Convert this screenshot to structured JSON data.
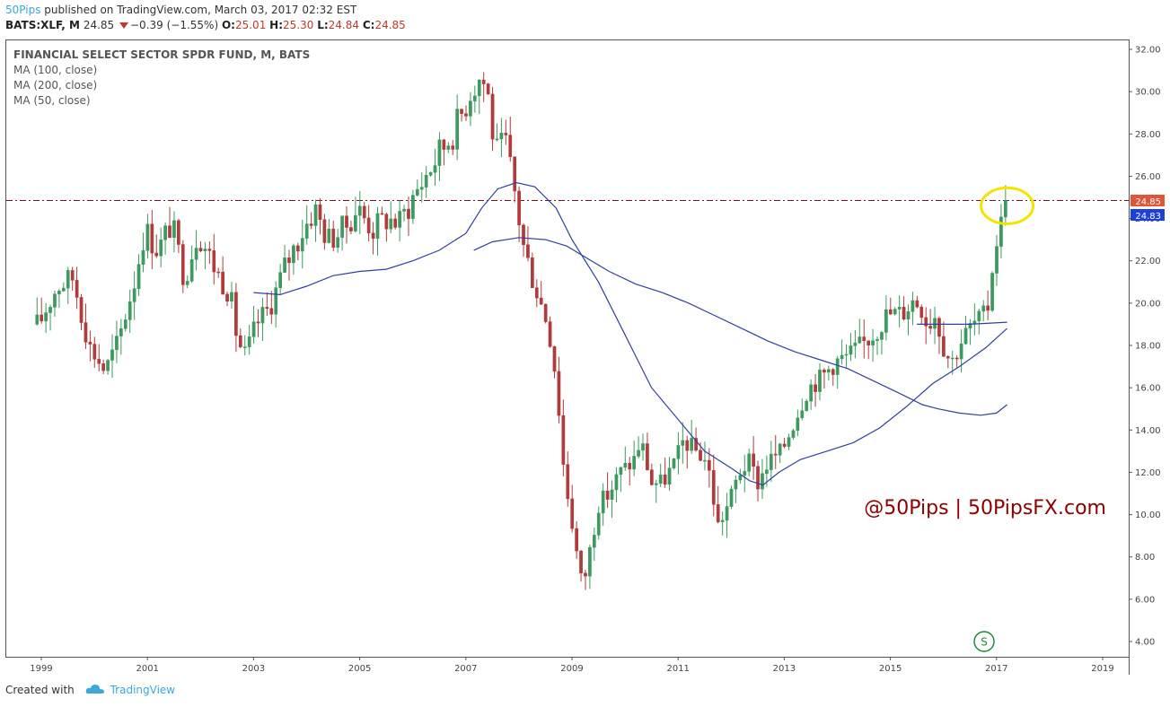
{
  "header": {
    "author": "50Pips",
    "published": "published on TradingView.com, March 03, 2017 02:32 EST",
    "symbol": "BATS:XLF, M",
    "last": "24.85",
    "change": "−0.39 (−1.55%)",
    "o_label": "O:",
    "o_value": "25.01",
    "h_label": "H:",
    "h_value": "25.30",
    "l_label": "L:",
    "l_value": "24.84",
    "c_label": "C:",
    "c_value": "24.85"
  },
  "legend": {
    "title": "FINANCIAL SELECT SECTOR SPDR FUND, M, BATS",
    "ma100": "MA (100, close)",
    "ma200": "MA (200, close)",
    "ma50": "MA (50, close)"
  },
  "watermark": "@50Pips | 50PipsFX.com",
  "price_labels": {
    "last": "24.85",
    "other": "24.83"
  },
  "footer": {
    "created": "Created with",
    "brand": "TradingView"
  },
  "badge": "S",
  "colors": {
    "up": "#3c9a5f",
    "down": "#b23a3a",
    "ma": "#3040a0",
    "axis": "#555555",
    "watermark": "#8b0000",
    "highlight": "#f5e400",
    "last_bg": "#e0553a",
    "other_bg": "#1e3fe0"
  },
  "chart_data": {
    "type": "candlestick",
    "title": "FINANCIAL SELECT SECTOR SPDR FUND, M, BATS",
    "x_ticks": [
      "1999",
      "2001",
      "2003",
      "2005",
      "2007",
      "2009",
      "2011",
      "2013",
      "2015",
      "2017",
      "2019"
    ],
    "y_ticks": [
      "32.00",
      "30.00",
      "28.00",
      "26.00",
      "24.00",
      "22.00",
      "20.00",
      "18.00",
      "16.00",
      "14.00",
      "12.00",
      "10.00",
      "8.00",
      "6.00",
      "4.00"
    ],
    "xlim": [
      1998.7,
      2019.3
    ],
    "ylim": [
      3.0,
      32.5
    ],
    "horizontal_line": 24.85,
    "highlight": {
      "date": 2017.2,
      "value": 24.6
    },
    "close_anchors": [
      [
        1998.95,
        19.0
      ],
      [
        1999.3,
        20.8
      ],
      [
        1999.6,
        21.2
      ],
      [
        1999.9,
        18.0
      ],
      [
        2000.2,
        16.8
      ],
      [
        2000.45,
        18.2
      ],
      [
        2000.75,
        21.0
      ],
      [
        2000.95,
        23.5
      ],
      [
        2001.2,
        22.5
      ],
      [
        2001.45,
        23.8
      ],
      [
        2001.7,
        21.2
      ],
      [
        2001.95,
        23.4
      ],
      [
        2002.3,
        21.5
      ],
      [
        2002.55,
        20.5
      ],
      [
        2002.7,
        18.2
      ],
      [
        2002.85,
        17.5
      ],
      [
        2003.05,
        19.0
      ],
      [
        2003.3,
        19.8
      ],
      [
        2003.6,
        21.8
      ],
      [
        2003.9,
        23.3
      ],
      [
        2004.15,
        24.5
      ],
      [
        2004.4,
        23.0
      ],
      [
        2004.7,
        23.5
      ],
      [
        2004.95,
        24.5
      ],
      [
        2005.25,
        23.5
      ],
      [
        2005.5,
        24.0
      ],
      [
        2005.75,
        23.8
      ],
      [
        2006.0,
        25.0
      ],
      [
        2006.35,
        26.5
      ],
      [
        2006.6,
        27.5
      ],
      [
        2006.85,
        28.5
      ],
      [
        2007.1,
        30.2
      ],
      [
        2007.3,
        30.8
      ],
      [
        2007.45,
        29.5
      ],
      [
        2007.55,
        27.0
      ],
      [
        2007.75,
        27.5
      ],
      [
        2007.9,
        25.5
      ],
      [
        2008.1,
        22.5
      ],
      [
        2008.35,
        20.5
      ],
      [
        2008.55,
        19.0
      ],
      [
        2008.7,
        16.5
      ],
      [
        2008.85,
        12.0
      ],
      [
        2008.98,
        10.0
      ],
      [
        2009.1,
        8.0
      ],
      [
        2009.2,
        6.5
      ],
      [
        2009.35,
        8.5
      ],
      [
        2009.5,
        10.5
      ],
      [
        2009.7,
        11.0
      ],
      [
        2009.9,
        12.0
      ],
      [
        2010.15,
        12.5
      ],
      [
        2010.3,
        13.5
      ],
      [
        2010.5,
        11.5
      ],
      [
        2010.7,
        11.5
      ],
      [
        2010.95,
        12.5
      ],
      [
        2011.1,
        13.5
      ],
      [
        2011.35,
        13.0
      ],
      [
        2011.55,
        12.5
      ],
      [
        2011.65,
        11.0
      ],
      [
        2011.75,
        9.5
      ],
      [
        2011.95,
        10.5
      ],
      [
        2012.15,
        12.0
      ],
      [
        2012.35,
        12.5
      ],
      [
        2012.5,
        11.5
      ],
      [
        2012.7,
        12.5
      ],
      [
        2012.95,
        13.0
      ],
      [
        2013.2,
        14.5
      ],
      [
        2013.45,
        16.0
      ],
      [
        2013.7,
        16.5
      ],
      [
        2013.95,
        17.2
      ],
      [
        2014.2,
        17.5
      ],
      [
        2014.45,
        18.0
      ],
      [
        2014.7,
        18.6
      ],
      [
        2014.95,
        19.5
      ],
      [
        2015.2,
        19.5
      ],
      [
        2015.45,
        20.2
      ],
      [
        2015.6,
        19.8
      ],
      [
        2015.7,
        19.0
      ],
      [
        2015.85,
        19.5
      ],
      [
        2016.0,
        18.0
      ],
      [
        2016.15,
        17.2
      ],
      [
        2016.35,
        18.3
      ],
      [
        2016.55,
        19.0
      ],
      [
        2016.75,
        19.3
      ],
      [
        2016.85,
        20.0
      ],
      [
        2016.95,
        22.5
      ],
      [
        2017.05,
        23.5
      ],
      [
        2017.15,
        24.2
      ]
    ],
    "series": [
      {
        "name": "MA (100, close)",
        "points": [
          [
            2003.0,
            20.5
          ],
          [
            2003.5,
            20.4
          ],
          [
            2004.0,
            20.8
          ],
          [
            2004.5,
            21.3
          ],
          [
            2005.0,
            21.5
          ],
          [
            2005.5,
            21.6
          ],
          [
            2006.0,
            22.0
          ],
          [
            2006.5,
            22.5
          ],
          [
            2007.0,
            23.3
          ],
          [
            2007.3,
            24.5
          ],
          [
            2007.6,
            25.4
          ],
          [
            2007.95,
            25.7
          ],
          [
            2008.3,
            25.5
          ],
          [
            2008.7,
            24.5
          ],
          [
            2009.0,
            23.0
          ],
          [
            2009.5,
            21.0
          ],
          [
            2010.0,
            18.5
          ],
          [
            2010.5,
            16.0
          ],
          [
            2011.0,
            14.5
          ],
          [
            2011.5,
            13.0
          ],
          [
            2012.0,
            12.2
          ],
          [
            2012.35,
            11.6
          ],
          [
            2012.6,
            11.4
          ],
          [
            2012.9,
            12.0
          ],
          [
            2013.3,
            12.6
          ],
          [
            2013.8,
            13.0
          ],
          [
            2014.3,
            13.4
          ],
          [
            2014.8,
            14.1
          ],
          [
            2015.3,
            15.1
          ],
          [
            2015.8,
            16.2
          ],
          [
            2016.3,
            17.0
          ],
          [
            2016.8,
            17.9
          ],
          [
            2017.2,
            18.8
          ]
        ]
      },
      {
        "name": "MA (200, close)",
        "points": [
          [
            2007.15,
            22.5
          ],
          [
            2007.5,
            22.9
          ],
          [
            2008.0,
            23.1
          ],
          [
            2008.5,
            23.0
          ],
          [
            2008.9,
            22.7
          ],
          [
            2009.3,
            22.1
          ],
          [
            2009.7,
            21.5
          ],
          [
            2010.2,
            20.9
          ],
          [
            2010.7,
            20.5
          ],
          [
            2011.2,
            20.0
          ],
          [
            2011.7,
            19.4
          ],
          [
            2012.2,
            18.8
          ],
          [
            2012.7,
            18.2
          ],
          [
            2013.2,
            17.7
          ],
          [
            2013.7,
            17.3
          ],
          [
            2014.2,
            16.9
          ],
          [
            2014.7,
            16.3
          ],
          [
            2015.2,
            15.7
          ],
          [
            2015.6,
            15.2
          ],
          [
            2015.9,
            15.0
          ],
          [
            2016.3,
            14.8
          ],
          [
            2016.7,
            14.7
          ],
          [
            2017.0,
            14.8
          ],
          [
            2017.2,
            15.2
          ]
        ]
      },
      {
        "name": "MA (50, close)",
        "points": [
          [
            2015.5,
            19.0
          ],
          [
            2016.0,
            19.0
          ],
          [
            2016.5,
            19.0
          ],
          [
            2017.2,
            19.1
          ]
        ]
      }
    ]
  }
}
